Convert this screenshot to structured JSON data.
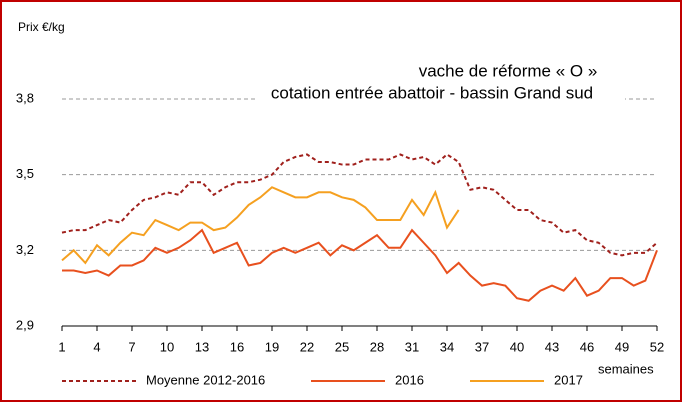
{
  "chart_data": {
    "type": "line",
    "title": [
      "vache de réforme « O »",
      "cotation entrée abattoir - bassin Grand sud"
    ],
    "y_label": "Prix €/kg",
    "x_label": "semaines",
    "x": [
      1,
      2,
      3,
      4,
      5,
      6,
      7,
      8,
      9,
      10,
      11,
      12,
      13,
      14,
      15,
      16,
      17,
      18,
      19,
      20,
      21,
      22,
      23,
      24,
      25,
      26,
      27,
      28,
      29,
      30,
      31,
      32,
      33,
      34,
      35,
      36,
      37,
      38,
      39,
      40,
      41,
      42,
      43,
      44,
      45,
      46,
      47,
      48,
      49,
      50,
      51,
      52
    ],
    "xlim": [
      1,
      52
    ],
    "xticks": [
      1,
      4,
      7,
      10,
      13,
      16,
      19,
      22,
      25,
      28,
      31,
      34,
      37,
      40,
      43,
      46,
      49,
      52
    ],
    "ylim": [
      2.9,
      4.0
    ],
    "yticks": [
      {
        "value": 2.9,
        "label": "2,9"
      },
      {
        "value": 3.2,
        "label": "3,2"
      },
      {
        "value": 3.5,
        "label": "3,5"
      },
      {
        "value": 3.8,
        "label": "3,8"
      }
    ],
    "grid": true,
    "legend": "bottom",
    "series": [
      {
        "name": "Moyenne 2012-2016",
        "color": "#a0201c",
        "dash": true,
        "values": [
          3.27,
          3.28,
          3.28,
          3.3,
          3.32,
          3.31,
          3.36,
          3.4,
          3.41,
          3.43,
          3.42,
          3.47,
          3.47,
          3.42,
          3.45,
          3.47,
          3.47,
          3.48,
          3.5,
          3.55,
          3.57,
          3.58,
          3.55,
          3.55,
          3.54,
          3.54,
          3.56,
          3.56,
          3.56,
          3.58,
          3.56,
          3.57,
          3.54,
          3.58,
          3.55,
          3.44,
          3.45,
          3.44,
          3.4,
          3.36,
          3.36,
          3.32,
          3.31,
          3.27,
          3.28,
          3.24,
          3.23,
          3.19,
          3.18,
          3.19,
          3.19,
          3.23
        ]
      },
      {
        "name": "2016",
        "color": "#e8501e",
        "dash": false,
        "values": [
          3.12,
          3.12,
          3.11,
          3.12,
          3.1,
          3.14,
          3.14,
          3.16,
          3.21,
          3.19,
          3.21,
          3.24,
          3.28,
          3.19,
          3.21,
          3.23,
          3.14,
          3.15,
          3.19,
          3.21,
          3.19,
          3.21,
          3.23,
          3.18,
          3.22,
          3.2,
          3.23,
          3.26,
          3.21,
          3.21,
          3.28,
          3.23,
          3.18,
          3.11,
          3.15,
          3.1,
          3.06,
          3.07,
          3.06,
          3.01,
          3.0,
          3.04,
          3.06,
          3.04,
          3.09,
          3.02,
          3.04,
          3.09,
          3.09,
          3.06,
          3.08,
          3.2
        ]
      },
      {
        "name": "2017",
        "color": "#f5a020",
        "dash": false,
        "values": [
          3.16,
          3.2,
          3.15,
          3.22,
          3.18,
          3.23,
          3.27,
          3.26,
          3.32,
          3.3,
          3.28,
          3.31,
          3.31,
          3.28,
          3.29,
          3.33,
          3.38,
          3.41,
          3.45,
          3.43,
          3.41,
          3.41,
          3.43,
          3.43,
          3.41,
          3.4,
          3.37,
          3.32,
          3.32,
          3.32,
          3.4,
          3.34,
          3.43,
          3.29,
          3.36,
          null,
          null,
          null,
          null,
          null,
          null,
          null,
          null,
          null,
          null,
          null,
          null,
          null,
          null,
          null,
          null,
          null
        ]
      }
    ]
  }
}
